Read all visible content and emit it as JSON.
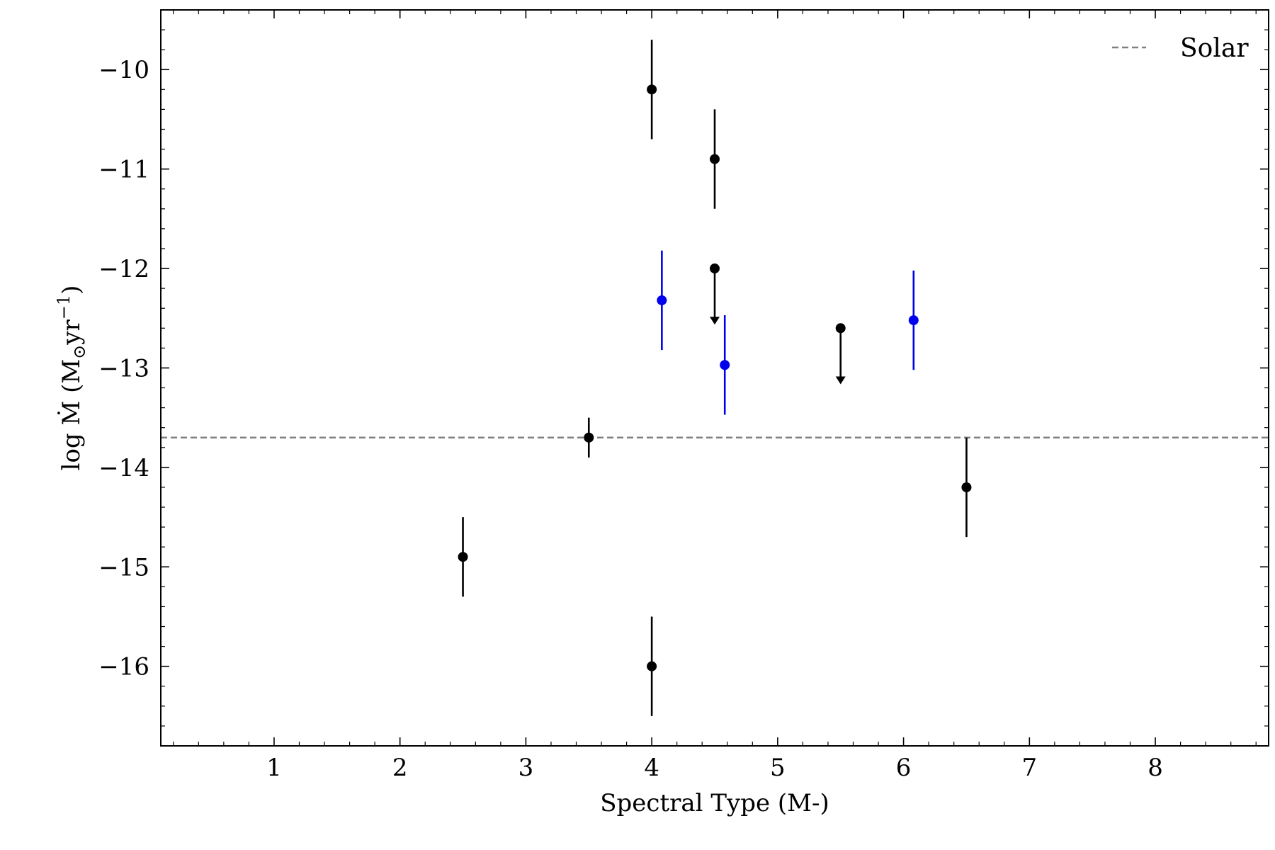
{
  "chart_data": {
    "type": "scatter",
    "title": "",
    "xlabel": "Spectral Type (M-)",
    "ylabel": "log Ṁ (M⊙yr⁻¹)",
    "ylabel_parts": {
      "prefix": "log Ṁ (M",
      "sun": "⊙",
      "unit": "yr",
      "exp": "−1",
      "suffix": ")"
    },
    "xlim": [
      0.1,
      8.9
    ],
    "ylim": [
      -16.8,
      -9.4
    ],
    "xticks": [
      1,
      2,
      3,
      4,
      5,
      6,
      7,
      8
    ],
    "xtick_labels": [
      "1",
      "2",
      "3",
      "4",
      "5",
      "6",
      "7",
      "8"
    ],
    "yticks": [
      -10,
      -11,
      -12,
      -13,
      -14,
      -15,
      -16
    ],
    "ytick_labels": [
      "−10",
      "−11",
      "−12",
      "−13",
      "−14",
      "−15",
      "−16"
    ],
    "grid": false,
    "legend": {
      "placement": "top-right",
      "entries": [
        {
          "label": "Solar",
          "style": "dashed",
          "color": "#808080"
        }
      ]
    },
    "solar_line": {
      "y": -13.7,
      "color": "#808080"
    },
    "series": [
      {
        "color": "#000000",
        "points": [
          {
            "x": 2.5,
            "y": -14.9,
            "err": 0.4
          },
          {
            "x": 3.5,
            "y": -13.7,
            "err": 0.2
          },
          {
            "x": 4.0,
            "y": -10.2,
            "err": 0.5
          },
          {
            "x": 4.0,
            "y": -16.0,
            "err": 0.5
          },
          {
            "x": 4.5,
            "y": -10.9,
            "err": 0.5
          },
          {
            "x": 6.5,
            "y": -14.2,
            "err": 0.5
          }
        ]
      },
      {
        "color": "#000000",
        "upper_limits": [
          {
            "x": 4.5,
            "y": -12.0,
            "to": -12.55
          },
          {
            "x": 5.5,
            "y": -12.6,
            "to": -13.15
          }
        ]
      },
      {
        "color": "#0000ee",
        "points": [
          {
            "x": 4.08,
            "y": -12.32,
            "err": 0.5
          },
          {
            "x": 4.58,
            "y": -12.97,
            "err": 0.5
          },
          {
            "x": 6.08,
            "y": -12.52,
            "err": 0.5
          }
        ]
      }
    ]
  }
}
